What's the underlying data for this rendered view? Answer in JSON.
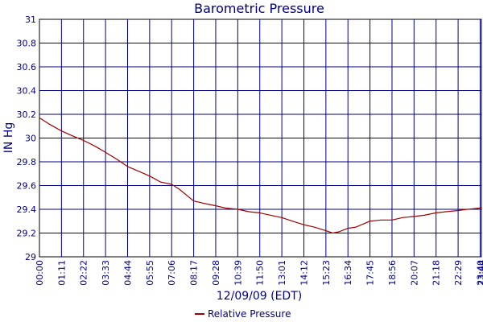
{
  "chart_data": {
    "type": "line",
    "title": "Barometric Pressure",
    "xlabel": "12/09/09 (EDT)",
    "ylabel": "IN Hg",
    "ylim": [
      29,
      31
    ],
    "yticks": [
      "29",
      "29.2",
      "29.4",
      "29.6",
      "29.8",
      "30",
      "30.2",
      "30.4",
      "30.6",
      "30.8",
      "31"
    ],
    "xticks": [
      "00:00",
      "01:11",
      "02:22",
      "03:33",
      "04:44",
      "05:55",
      "07:06",
      "08:17",
      "09:28",
      "10:39",
      "11:50",
      "13:01",
      "14:12",
      "15:23",
      "16:34",
      "17:45",
      "18:56",
      "20:07",
      "21:18",
      "22:29",
      "23:40",
      "23:44"
    ],
    "grid": true,
    "legend_position": "bottom",
    "colors": {
      "series": "#a00000",
      "axis_text": "#000080",
      "grid": "#000080",
      "axis": "#000000"
    },
    "series": [
      {
        "name": "Relative Pressure",
        "x": [
          "00:00",
          "00:30",
          "01:11",
          "01:45",
          "02:22",
          "03:00",
          "03:33",
          "04:10",
          "04:44",
          "05:20",
          "05:55",
          "06:30",
          "07:06",
          "07:30",
          "08:17",
          "08:50",
          "09:28",
          "10:00",
          "10:39",
          "11:15",
          "11:50",
          "12:25",
          "13:01",
          "13:35",
          "14:12",
          "14:45",
          "15:23",
          "15:45",
          "16:05",
          "16:34",
          "17:00",
          "17:45",
          "18:20",
          "18:56",
          "19:30",
          "20:07",
          "20:40",
          "21:18",
          "21:50",
          "22:29",
          "23:00",
          "23:40",
          "23:44"
        ],
        "values": [
          30.17,
          30.12,
          30.06,
          30.02,
          29.98,
          29.93,
          29.88,
          29.82,
          29.76,
          29.72,
          29.68,
          29.63,
          29.61,
          29.57,
          29.47,
          29.45,
          29.43,
          29.41,
          29.4,
          29.38,
          29.37,
          29.35,
          29.33,
          29.3,
          29.27,
          29.25,
          29.22,
          29.2,
          29.21,
          29.24,
          29.25,
          29.3,
          29.31,
          29.31,
          29.33,
          29.34,
          29.35,
          29.37,
          29.38,
          29.39,
          29.4,
          29.41,
          29.42
        ]
      }
    ]
  }
}
